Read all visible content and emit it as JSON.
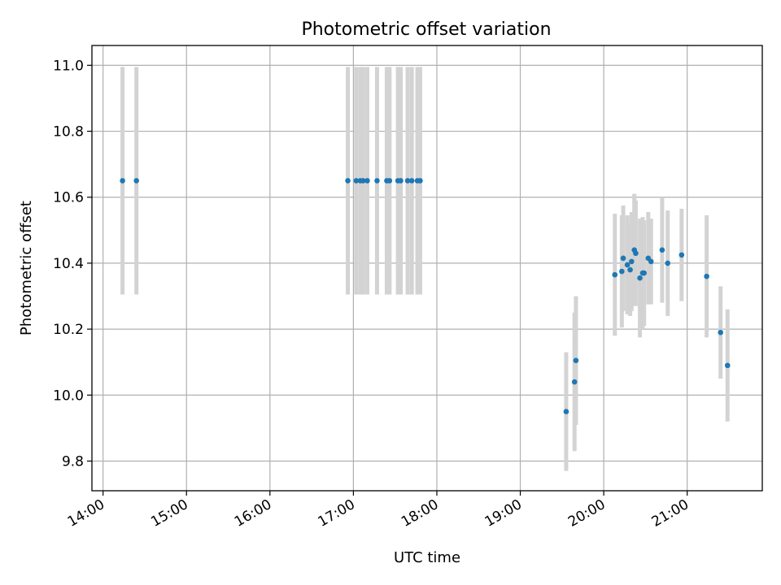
{
  "chart_data": {
    "type": "scatter",
    "title": "Photometric offset variation",
    "xlabel": "UTC time",
    "ylabel": "Photometric offset",
    "xlim": [
      "13:52",
      "21:54"
    ],
    "ylim": [
      9.71,
      11.06
    ],
    "x_ticks": [
      "14:00",
      "15:00",
      "16:00",
      "17:00",
      "18:00",
      "19:00",
      "20:00",
      "21:00"
    ],
    "y_ticks": [
      "9.8",
      "10.0",
      "10.2",
      "10.4",
      "10.6",
      "10.8",
      "11.0"
    ],
    "grid": true,
    "series": [
      {
        "marker_color": "#1f77b4",
        "error_color": "#d3d3d3",
        "points": [
          {
            "x": "14:14",
            "y": 10.65,
            "yerr": 0.345
          },
          {
            "x": "14:24",
            "y": 10.65,
            "yerr": 0.345
          },
          {
            "x": "16:56",
            "y": 10.65,
            "yerr": 0.345
          },
          {
            "x": "17:02",
            "y": 10.65,
            "yerr": 0.345
          },
          {
            "x": "17:05",
            "y": 10.65,
            "yerr": 0.345
          },
          {
            "x": "17:07",
            "y": 10.65,
            "yerr": 0.345
          },
          {
            "x": "17:10",
            "y": 10.65,
            "yerr": 0.345
          },
          {
            "x": "17:17",
            "y": 10.65,
            "yerr": 0.345
          },
          {
            "x": "17:24",
            "y": 10.65,
            "yerr": 0.345
          },
          {
            "x": "17:26",
            "y": 10.65,
            "yerr": 0.345
          },
          {
            "x": "17:32",
            "y": 10.65,
            "yerr": 0.345
          },
          {
            "x": "17:34",
            "y": 10.65,
            "yerr": 0.345
          },
          {
            "x": "17:39",
            "y": 10.65,
            "yerr": 0.345
          },
          {
            "x": "17:42",
            "y": 10.65,
            "yerr": 0.345
          },
          {
            "x": "17:46",
            "y": 10.65,
            "yerr": 0.345
          },
          {
            "x": "17:48",
            "y": 10.65,
            "yerr": 0.345
          },
          {
            "x": "19:33",
            "y": 9.95,
            "yerr": 0.18
          },
          {
            "x": "19:39",
            "y": 10.04,
            "yerr": 0.21
          },
          {
            "x": "19:40",
            "y": 10.105,
            "yerr": 0.195
          },
          {
            "x": "20:08",
            "y": 10.365,
            "yerr": 0.185
          },
          {
            "x": "20:13",
            "y": 10.375,
            "yerr": 0.17
          },
          {
            "x": "20:14",
            "y": 10.415,
            "yerr": 0.16
          },
          {
            "x": "20:17",
            "y": 10.395,
            "yerr": 0.15
          },
          {
            "x": "20:19",
            "y": 10.38,
            "yerr": 0.14
          },
          {
            "x": "20:20",
            "y": 10.405,
            "yerr": 0.15
          },
          {
            "x": "20:22",
            "y": 10.44,
            "yerr": 0.17
          },
          {
            "x": "20:23",
            "y": 10.43,
            "yerr": 0.16
          },
          {
            "x": "20:26",
            "y": 10.355,
            "yerr": 0.18
          },
          {
            "x": "20:28",
            "y": 10.37,
            "yerr": 0.17
          },
          {
            "x": "20:29",
            "y": 10.37,
            "yerr": 0.16
          },
          {
            "x": "20:32",
            "y": 10.415,
            "yerr": 0.14
          },
          {
            "x": "20:34",
            "y": 10.405,
            "yerr": 0.13
          },
          {
            "x": "20:42",
            "y": 10.44,
            "yerr": 0.16
          },
          {
            "x": "20:46",
            "y": 10.4,
            "yerr": 0.16
          },
          {
            "x": "20:56",
            "y": 10.425,
            "yerr": 0.14
          },
          {
            "x": "21:14",
            "y": 10.36,
            "yerr": 0.185
          },
          {
            "x": "21:24",
            "y": 10.19,
            "yerr": 0.14
          },
          {
            "x": "21:29",
            "y": 10.09,
            "yerr": 0.17
          }
        ]
      }
    ]
  }
}
